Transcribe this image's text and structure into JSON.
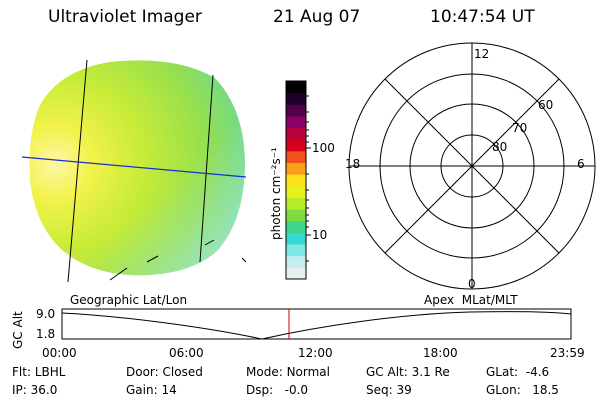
{
  "header": {
    "instrument": "Ultraviolet Imager",
    "date": "21 Aug 07",
    "time": "10:47:54 UT"
  },
  "colorbar": {
    "unit_label": "photon cm⁻²s⁻¹",
    "tick_labels": [
      "100",
      "10"
    ],
    "scale": "log",
    "colors": [
      "#e9eef1",
      "#c6ecf0",
      "#7fe8e6",
      "#36d8d6",
      "#3fd58d",
      "#7fdc3f",
      "#b6ec2a",
      "#e6f21a",
      "#fde01a",
      "#f8a21a",
      "#f0521a",
      "#d6001a",
      "#b8003a",
      "#8a0068",
      "#51004a",
      "#1d0028",
      "#000000"
    ]
  },
  "image_panel": {
    "left_label": "Geographic Lat/Lon"
  },
  "polar_grid": {
    "right_label": "Apex  MLat/MLT",
    "mlt_labels": [
      "12",
      "18",
      "6",
      "0"
    ],
    "mlat_labels": [
      "60",
      "70",
      "80"
    ]
  },
  "altitude_plot": {
    "axis_label": "GC Alt",
    "y_ticks": [
      "9.0",
      "1.8"
    ],
    "x_ticks": [
      "00:00",
      "06:00",
      "12:00",
      "18:00",
      "23:59"
    ],
    "current_marker_color": "#cc0000",
    "line_color": "#000000"
  },
  "footer": {
    "row1": [
      {
        "label": "Flt:",
        "value": "LBHL"
      },
      {
        "label": "Door:",
        "value": "Closed"
      },
      {
        "label": "Mode:",
        "value": "Normal"
      },
      {
        "label": "GC Alt:",
        "value": "3.1 Re"
      },
      {
        "label": "GLat:",
        "value": "-4.6"
      }
    ],
    "row2": [
      {
        "label": "IP:",
        "value": "36.0"
      },
      {
        "label": "Gain:",
        "value": "14"
      },
      {
        "label": "Dsp:",
        "value": "-0.0"
      },
      {
        "label": "Seq:",
        "value": "39"
      },
      {
        "label": "GLon:",
        "value": "18.5"
      }
    ]
  }
}
